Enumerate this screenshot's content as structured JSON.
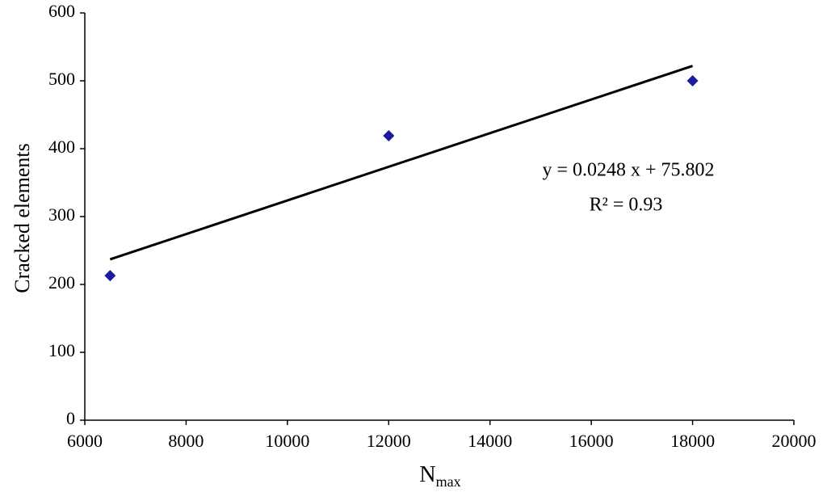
{
  "chart_data": {
    "type": "scatter",
    "xlabel": {
      "text": "N",
      "subscript": "max"
    },
    "ylabel": "Cracked elements",
    "x": [
      6500,
      12000,
      18000
    ],
    "values": [
      213,
      419,
      500
    ],
    "color": "#1a1a9c",
    "trendline": {
      "x": [
        6500,
        18000
      ],
      "values": [
        237,
        522
      ],
      "color": "#000000"
    },
    "annotations": [
      "y = 0.0248 x + 75.802",
      "R² = 0.93"
    ],
    "xlim": [
      6000,
      20000
    ],
    "xticks": [
      6000,
      8000,
      10000,
      12000,
      14000,
      16000,
      18000,
      20000
    ],
    "ylim": [
      0,
      600
    ],
    "yticks": [
      0,
      100,
      200,
      300,
      400,
      500,
      600
    ],
    "grid": false
  }
}
